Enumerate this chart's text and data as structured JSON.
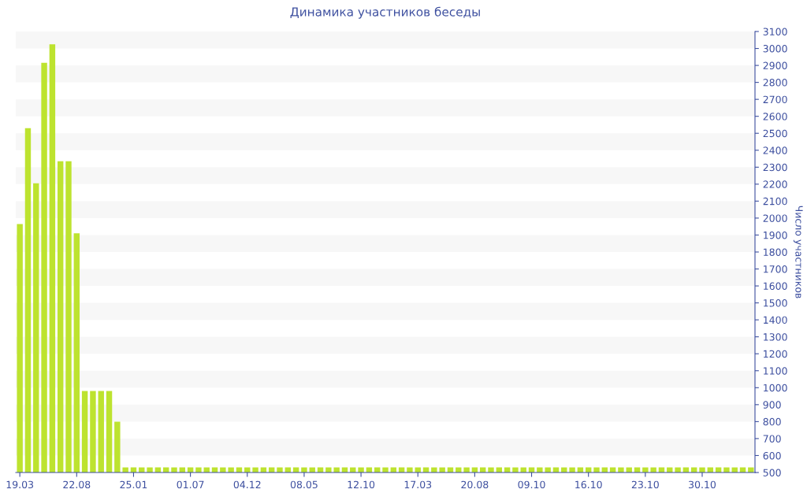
{
  "chart_data": {
    "type": "bar",
    "title": "Динамика участников беседы",
    "ylabel": "Число участников",
    "color": "#bde32f",
    "categories": [
      "19.03",
      null,
      null,
      null,
      null,
      null,
      null,
      "22.08",
      null,
      null,
      null,
      null,
      null,
      null,
      "25.01",
      null,
      null,
      null,
      null,
      null,
      null,
      "01.07",
      null,
      null,
      null,
      null,
      null,
      null,
      "04.12",
      null,
      null,
      null,
      null,
      null,
      null,
      "08.05",
      null,
      null,
      null,
      null,
      null,
      null,
      "12.10",
      null,
      null,
      null,
      null,
      null,
      null,
      "17.03",
      null,
      null,
      null,
      null,
      null,
      null,
      "20.08",
      null,
      null,
      null,
      null,
      null,
      null,
      "09.10",
      null,
      null,
      null,
      null,
      null,
      null,
      "16.10",
      null,
      null,
      null,
      null,
      null,
      null,
      "23.10",
      null,
      null,
      null,
      null,
      null,
      null,
      "30.10",
      null,
      null,
      null,
      null,
      null,
      null
    ],
    "values": [
      1965,
      2530,
      2205,
      2915,
      3025,
      2335,
      2335,
      1910,
      980,
      980,
      980,
      980,
      800,
      530,
      530,
      530,
      530,
      530,
      530,
      530,
      530,
      530,
      530,
      530,
      530,
      530,
      530,
      530,
      530,
      530,
      530,
      530,
      530,
      530,
      530,
      530,
      530,
      530,
      530,
      530,
      530,
      530,
      530,
      530,
      530,
      530,
      530,
      530,
      530,
      530,
      530,
      530,
      530,
      530,
      530,
      530,
      530,
      530,
      530,
      530,
      530,
      530,
      530,
      530,
      530,
      530,
      530,
      530,
      530,
      530,
      530,
      530,
      530,
      530,
      530,
      530,
      530,
      530,
      530,
      530,
      530,
      530,
      530,
      530,
      530,
      530,
      530,
      530,
      530,
      530,
      530
    ],
    "ylim": [
      500,
      3100
    ],
    "yticks": [
      500,
      600,
      700,
      800,
      900,
      1000,
      1100,
      1200,
      1300,
      1400,
      1500,
      1600,
      1700,
      1800,
      1900,
      2000,
      2100,
      2200,
      2300,
      2400,
      2500,
      2600,
      2700,
      2800,
      2900,
      3000,
      3100
    ],
    "bands": [
      {
        "axis": "y",
        "from": 600,
        "to": 700,
        "color": "#f7f7f7"
      },
      {
        "axis": "y",
        "from": 800,
        "to": 900,
        "color": "#f7f7f7"
      },
      {
        "axis": "y",
        "from": 1000,
        "to": 1100,
        "color": "#f7f7f7"
      },
      {
        "axis": "y",
        "from": 1200,
        "to": 1300,
        "color": "#f7f7f7"
      },
      {
        "axis": "y",
        "from": 1400,
        "to": 1500,
        "color": "#f7f7f7"
      },
      {
        "axis": "y",
        "from": 1600,
        "to": 1700,
        "color": "#f7f7f7"
      },
      {
        "axis": "y",
        "from": 1800,
        "to": 1900,
        "color": "#f7f7f7"
      },
      {
        "axis": "y",
        "from": 2000,
        "to": 2100,
        "color": "#f7f7f7"
      },
      {
        "axis": "y",
        "from": 2200,
        "to": 2300,
        "color": "#f7f7f7"
      },
      {
        "axis": "y",
        "from": 2400,
        "to": 2500,
        "color": "#f7f7f7"
      },
      {
        "axis": "y",
        "from": 2600,
        "to": 2700,
        "color": "#f7f7f7"
      },
      {
        "axis": "y",
        "from": 2800,
        "to": 2900,
        "color": "#f7f7f7"
      },
      {
        "axis": "y",
        "from": 3000,
        "to": 3100,
        "color": "#f7f7f7"
      }
    ]
  }
}
